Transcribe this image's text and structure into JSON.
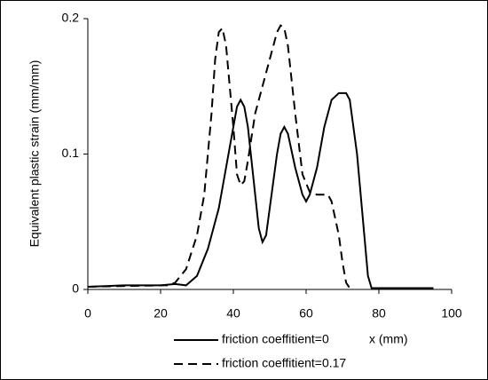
{
  "chart_data": {
    "type": "line",
    "y_label": "Equivalent plastic strain (mm/mm)",
    "x_label": "x (mm)",
    "xlim": [
      0,
      100
    ],
    "xticks": [
      0,
      20,
      40,
      60,
      80,
      100
    ],
    "ylim": [
      0,
      0.2
    ],
    "yticks": [
      0,
      0.1,
      0.2
    ],
    "series": [
      {
        "name": "friction coeffitient=0",
        "color": "#000000",
        "dash": false,
        "x": [
          0,
          10,
          20,
          24,
          27,
          30,
          33,
          36,
          38,
          40,
          41,
          42,
          43,
          44,
          46,
          47,
          48,
          49,
          50,
          52,
          53,
          54,
          55,
          57,
          59,
          60,
          61,
          63,
          65,
          67,
          69,
          71,
          72,
          74,
          76,
          77,
          78,
          85,
          95
        ],
        "values": [
          0.002,
          0.003,
          0.003,
          0.004,
          0.003,
          0.01,
          0.03,
          0.06,
          0.09,
          0.12,
          0.135,
          0.14,
          0.135,
          0.12,
          0.07,
          0.045,
          0.035,
          0.04,
          0.06,
          0.1,
          0.115,
          0.12,
          0.115,
          0.09,
          0.07,
          0.065,
          0.07,
          0.09,
          0.12,
          0.14,
          0.145,
          0.145,
          0.14,
          0.1,
          0.04,
          0.01,
          0.001,
          0.001,
          0.001
        ]
      },
      {
        "name": "friction coeffitient=0.17",
        "color": "#000000",
        "dash": true,
        "x": [
          0,
          20,
          22,
          24,
          27,
          30,
          32,
          34,
          35,
          36,
          37,
          38,
          39,
          40,
          41,
          42,
          43,
          44,
          46,
          48,
          50,
          52,
          53,
          54,
          55,
          57,
          59,
          61,
          63,
          66,
          67,
          69,
          70,
          71,
          72
        ],
        "values": [
          0.002,
          0.003,
          0.003,
          0.005,
          0.015,
          0.04,
          0.07,
          0.13,
          0.17,
          0.19,
          0.193,
          0.18,
          0.15,
          0.12,
          0.085,
          0.077,
          0.08,
          0.095,
          0.13,
          0.15,
          0.17,
          0.19,
          0.195,
          0.193,
          0.18,
          0.13,
          0.085,
          0.072,
          0.07,
          0.07,
          0.065,
          0.04,
          0.02,
          0.005,
          0.001
        ]
      }
    ]
  }
}
